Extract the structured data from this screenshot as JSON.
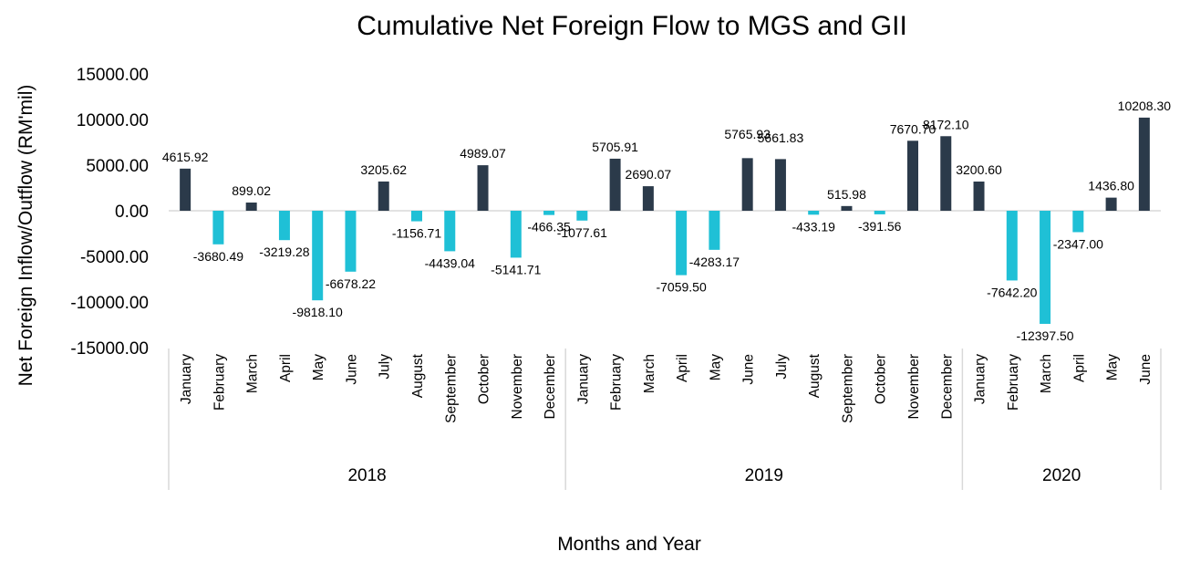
{
  "chart_data": {
    "type": "bar",
    "title": "Cumulative Net Foreign Flow to MGS and GII",
    "xlabel": "Months and Year",
    "ylabel": "Net Foreign Inflow/Outflow (RM'mil)",
    "ylim": [
      -15000,
      15000
    ],
    "yticks": [
      "15000.00",
      "10000.00",
      "5000.00",
      "0.00",
      "-5000.00",
      "-10000.00",
      "-15000.00"
    ],
    "ytick_values": [
      15000,
      10000,
      5000,
      0,
      -5000,
      -10000,
      -15000
    ],
    "grid": false,
    "legend": "none",
    "groups": [
      {
        "label": "2018",
        "count": 12
      },
      {
        "label": "2019",
        "count": 12
      },
      {
        "label": "2020",
        "count": 6
      }
    ],
    "categories": [
      "January",
      "February",
      "March",
      "April",
      "May",
      "June",
      "July",
      "August",
      "September",
      "October",
      "November",
      "December",
      "January",
      "February",
      "March",
      "April",
      "May",
      "June",
      "July",
      "August",
      "September",
      "October",
      "November",
      "December",
      "January",
      "February",
      "March",
      "April",
      "May",
      "June"
    ],
    "values": [
      4615.92,
      -3680.49,
      899.02,
      -3219.28,
      -9818.1,
      -6678.22,
      3205.62,
      -1156.71,
      -4439.04,
      4989.07,
      -5141.71,
      -466.35,
      -1077.61,
      5705.91,
      2690.07,
      -7059.5,
      -4283.17,
      5765.93,
      5661.83,
      -433.19,
      515.98,
      -391.56,
      7670.7,
      8172.1,
      3200.6,
      -7642.2,
      -12397.5,
      -2347.0,
      1436.8,
      10208.3
    ],
    "data_labels": [
      "4615.92",
      "-3680.49",
      "899.02",
      "-3219.28",
      "-9818.10",
      "-6678.22",
      "3205.62",
      "-1156.71",
      "-4439.04",
      "4989.07",
      "-5141.71",
      "-466.35",
      "-1077.61",
      "5705.91",
      "2690.07",
      "-7059.50",
      "-4283.17",
      "",
      "",
      "-433.19",
      "515.98",
      "-391.56",
      "7670.70",
      "8172.10",
      "3200.60",
      "-7642.20",
      "-12397.50",
      "-2347.00",
      "1436.80",
      "10208.30"
    ],
    "annotations": [
      "5765.93",
      "5661.83"
    ],
    "colors": {
      "positive": "#2b3a4a",
      "negative": "#1fc0d6",
      "axis": "#d9d9d9"
    }
  }
}
